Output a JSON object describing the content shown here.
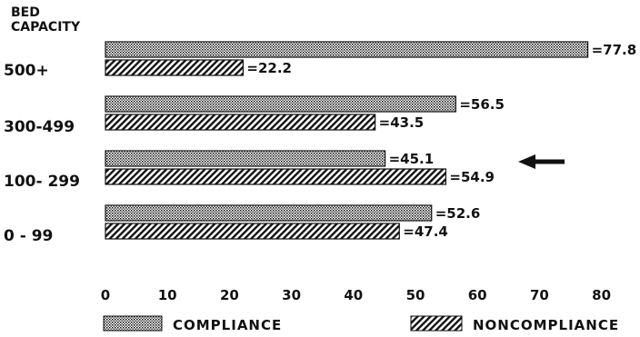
{
  "chart_data": {
    "type": "bar",
    "orientation": "horizontal",
    "ylabel": [
      "BED",
      "CAPACITY"
    ],
    "categories": [
      "500+",
      "300-499",
      "100- 299",
      "0  -  99"
    ],
    "series": [
      {
        "name": "COMPLIANCE",
        "values": [
          77.8,
          56.5,
          45.1,
          52.6
        ],
        "value_labels": [
          "=77.8",
          "=56.5",
          "=45.1",
          "=52.6"
        ],
        "pattern": "dotted"
      },
      {
        "name": "NONCOMPLIANCE",
        "values": [
          22.2,
          43.5,
          54.9,
          47.4
        ],
        "value_labels": [
          "=22.2",
          "=43.5",
          "=54.9",
          "=47.4"
        ],
        "pattern": "hatched"
      }
    ],
    "xticks": [
      0,
      10,
      20,
      30,
      40,
      50,
      60,
      70,
      80
    ],
    "xlim": [
      0,
      80
    ],
    "grid": false,
    "legend_position": "bottom",
    "annotation": "arrow pointing to 100- 299 row",
    "colors": {
      "ink": "#111111",
      "background": "#ffffff"
    }
  }
}
